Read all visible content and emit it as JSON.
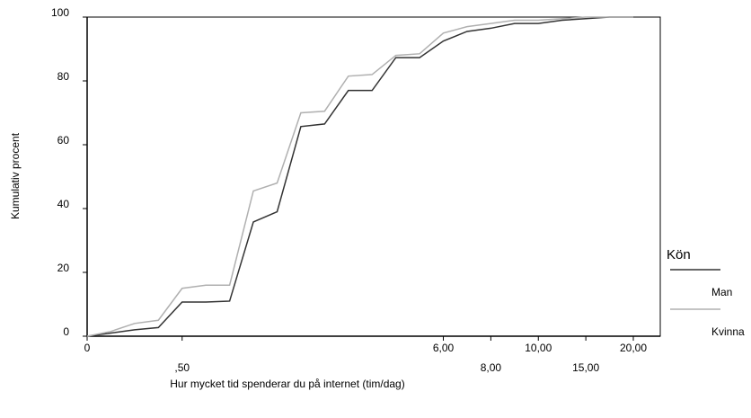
{
  "chart_data": {
    "type": "line",
    "x_label": "Hur mycket tid spenderar du på internet (tim/dag)",
    "y_label": "Kumulativ procent",
    "categories": [
      "0",
      null,
      null,
      null,
      ",50",
      null,
      null,
      null,
      null,
      null,
      null,
      null,
      null,
      null,
      null,
      "6,00",
      null,
      "8,00",
      null,
      "10,00",
      null,
      "15,00",
      null,
      "20,00"
    ],
    "series": [
      {
        "name": "Man",
        "color": "#333333",
        "values": [
          0,
          1,
          2,
          2.7,
          10.7,
          10.7,
          11,
          35.8,
          39,
          65.7,
          66.5,
          77,
          77,
          87.3,
          87.3,
          92.5,
          95.5,
          96.5,
          98,
          98,
          99,
          99.5,
          100,
          100
        ]
      },
      {
        "name": "Kvinna",
        "color": "#b0b0b0",
        "values": [
          0,
          1.5,
          4,
          5,
          15,
          16,
          16,
          45.5,
          48,
          70,
          70.5,
          81.5,
          82,
          88,
          88.5,
          95,
          97,
          98,
          99,
          99,
          99.5,
          100,
          100,
          100
        ]
      }
    ],
    "ylim": [
      0,
      100
    ],
    "yticks": [
      0,
      20,
      40,
      60,
      80,
      100
    ],
    "legend_title": "Kön",
    "legend_position": "right"
  }
}
